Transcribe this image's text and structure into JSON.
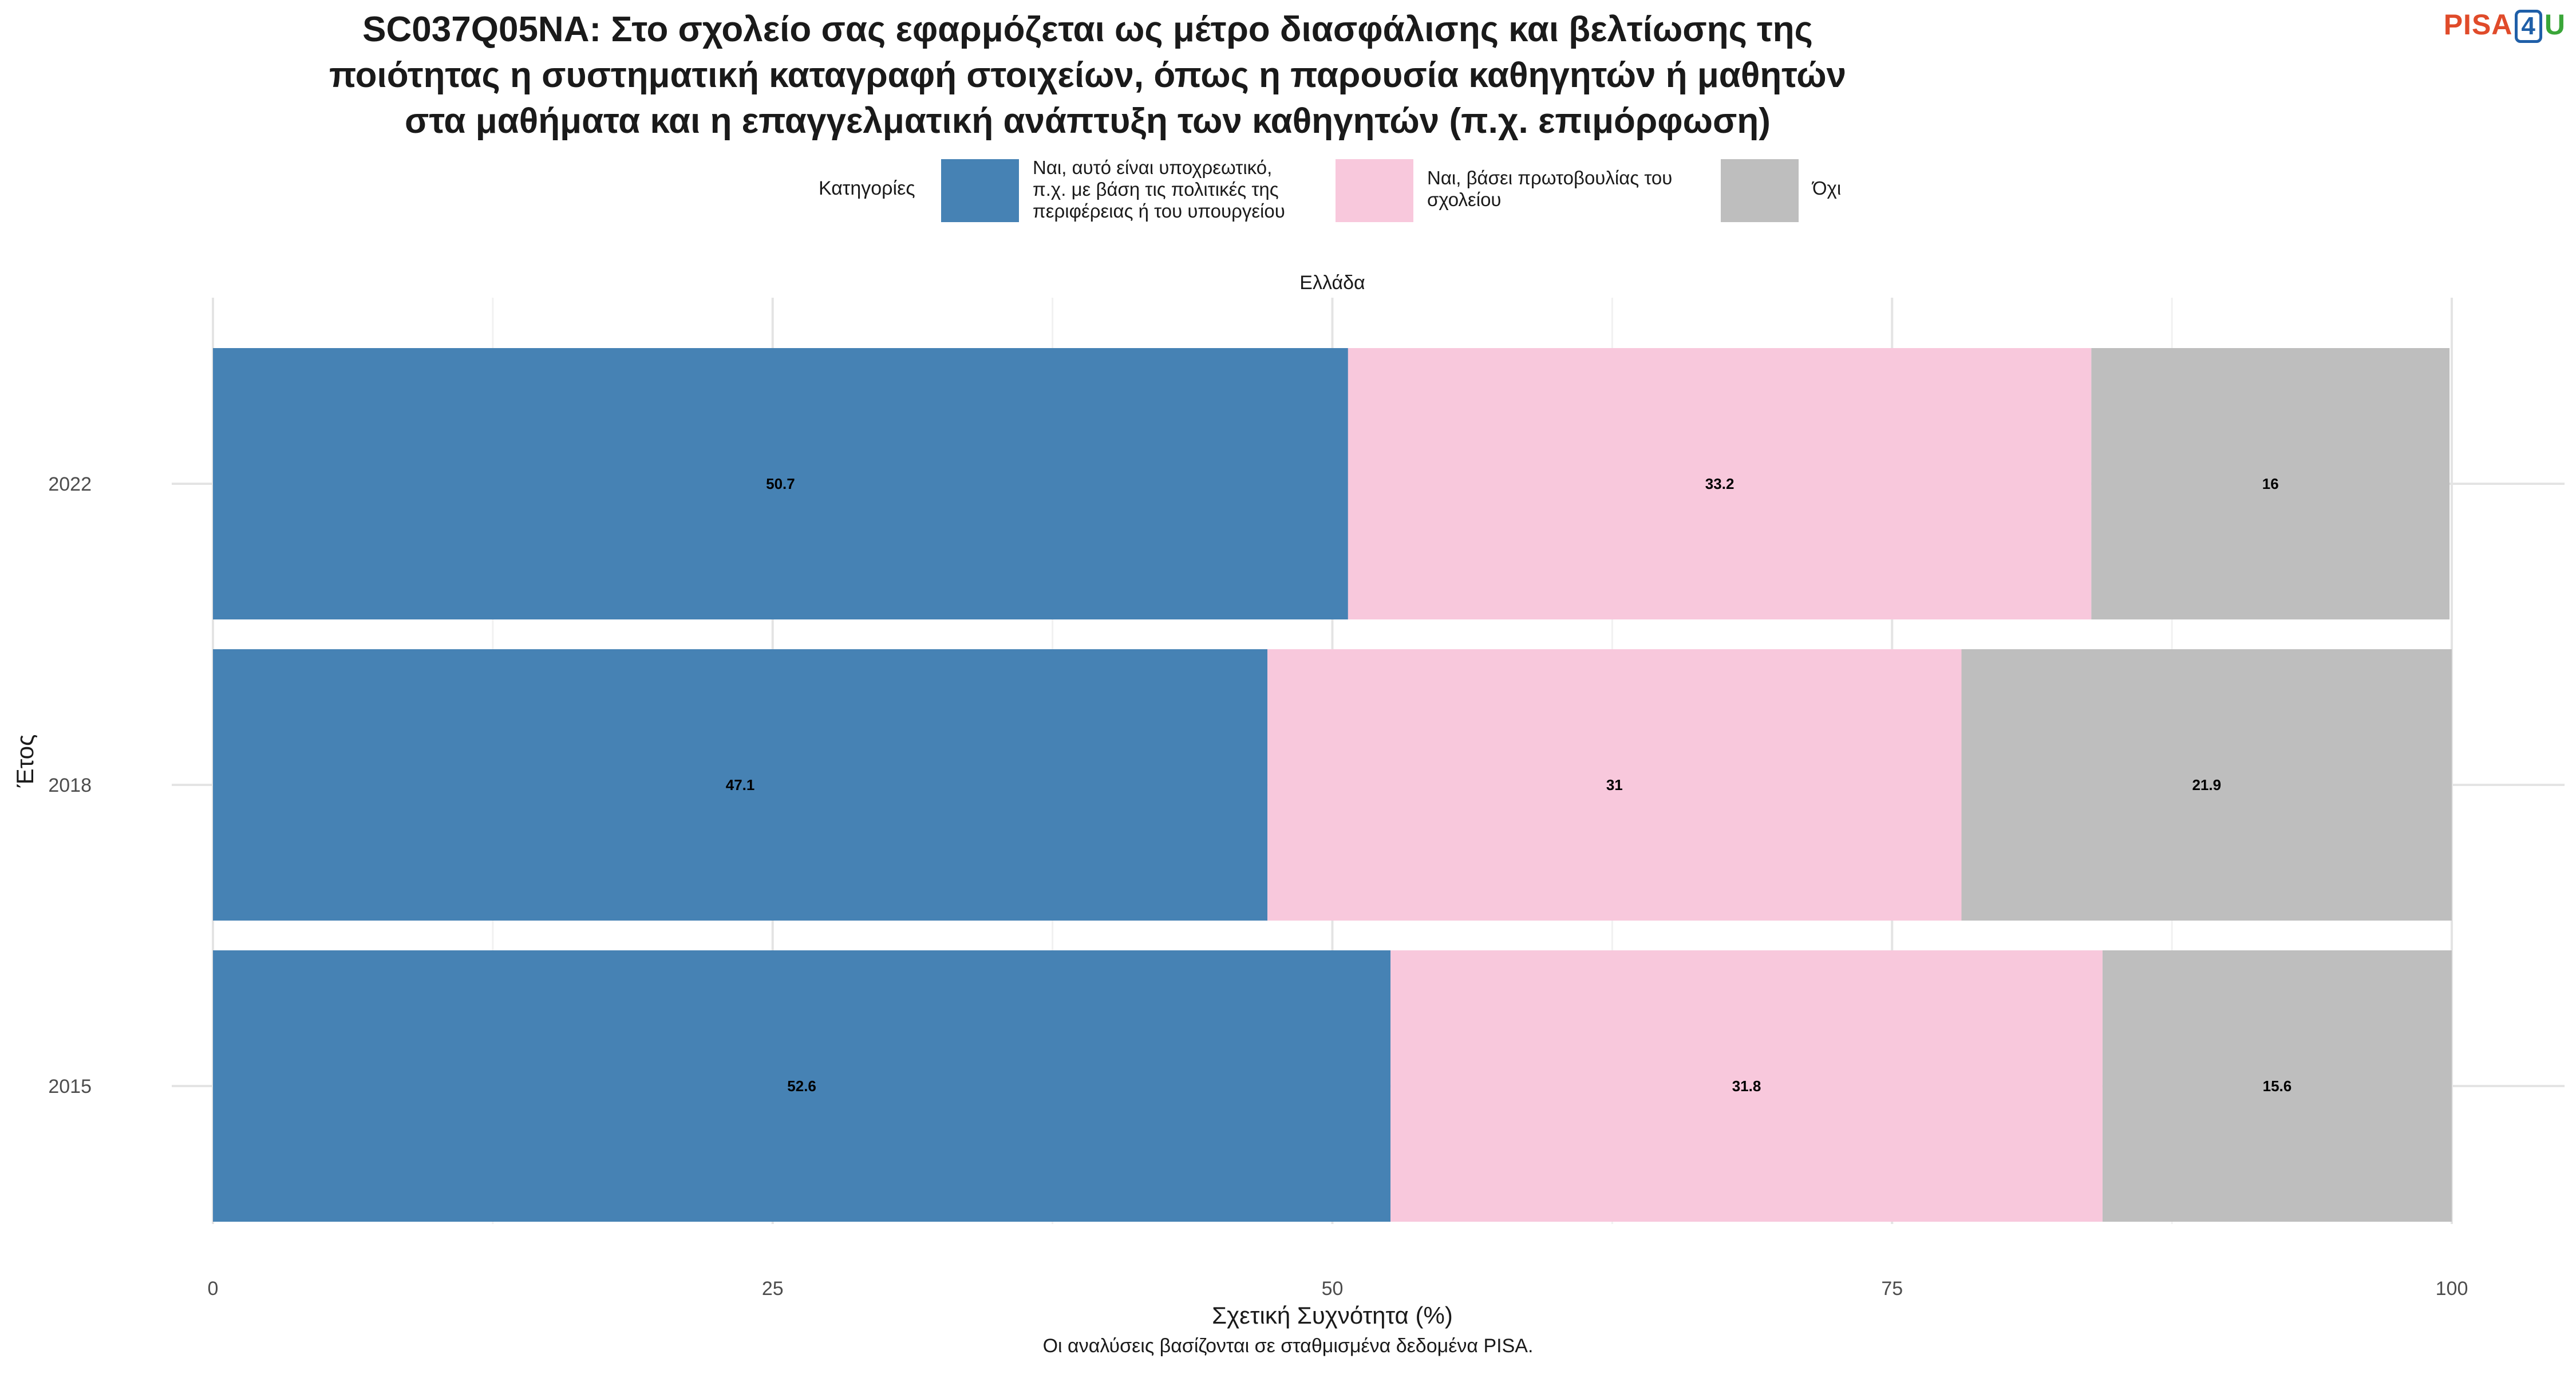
{
  "chart_data": {
    "type": "bar",
    "orientation": "horizontal",
    "stacked": true,
    "title_lines": [
      "SC037Q05NA: Στο σχολείο σας εφαρμόζεται ως μέτρο διασφάλισης και βελτίωσης της",
      "ποιότητας η συστηματική καταγραφή στοιχείων, όπως η παρουσία καθηγητών ή μαθητών",
      "στα μαθήματα και η επαγγελματική ανάπτυξη των καθηγητών (π.χ. επιμόρφωση)"
    ],
    "facet_label": "Ελλάδα",
    "xlabel": "Σχετική Συχνότητα (%)",
    "ylabel": "Έτος",
    "xlim": [
      0,
      100
    ],
    "xticks": [
      0,
      25,
      50,
      75,
      100
    ],
    "categories": [
      "2022",
      "2018",
      "2015"
    ],
    "legend_title": "Κατηγορίες",
    "legend_position": "top",
    "grid": true,
    "series": [
      {
        "name": "Ναι, αυτό είναι υποχρεωτικό,\nπ.χ. με βάση τις πολιτικές της\nπεριφέρειας ή του υπουργείου",
        "color": "#4682b4",
        "values": [
          50.7,
          47.1,
          52.6
        ],
        "labels": [
          "50.7",
          "47.1",
          "52.6"
        ]
      },
      {
        "name": "Ναι, βάσει πρωτοβουλίας του\nσχολείου",
        "color": "#f8c8dc",
        "values": [
          33.2,
          31,
          31.8
        ],
        "labels": [
          "33.2",
          "31",
          "31.8"
        ]
      },
      {
        "name": "Όχι",
        "color": "#bebebe",
        "values": [
          16,
          21.9,
          15.6
        ],
        "labels": [
          "16",
          "21.9",
          "15.6"
        ]
      }
    ],
    "caption": "Οι αναλύσεις βασίζονται σε σταθμισμένα δεδομένα PISA."
  },
  "logo": {
    "text_a": "PISA",
    "text_b": "4",
    "text_c": "U"
  }
}
